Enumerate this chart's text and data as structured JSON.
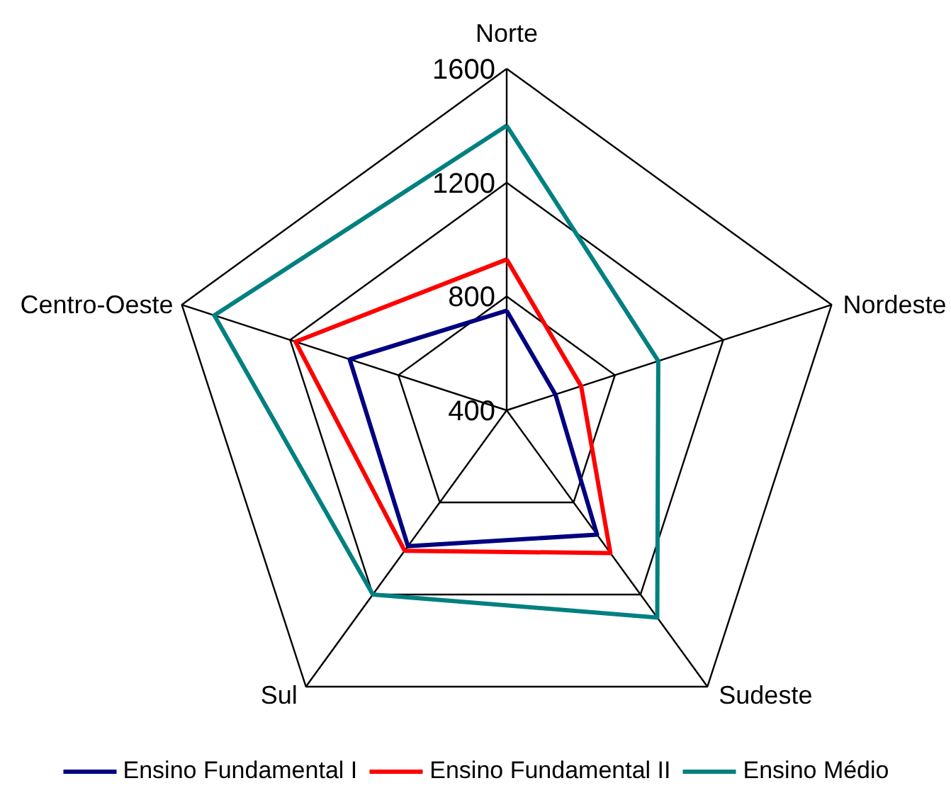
{
  "chart_data": {
    "type": "radar",
    "categories": [
      "Norte",
      "Nordeste",
      "Sudeste",
      "Sul",
      "Centro-Oeste"
    ],
    "ylim": [
      400,
      1600
    ],
    "yticks": [
      400,
      800,
      1200,
      1600
    ],
    "grid": true,
    "legend": "bottom",
    "series": [
      {
        "name": "Ensino Fundamental I",
        "color": "#000080",
        "values": [
          750,
          580,
          940,
          990,
          980
        ]
      },
      {
        "name": "Ensino Fundamental II",
        "color": "#ff0000",
        "values": [
          930,
          675,
          1020,
          1010,
          1180
        ]
      },
      {
        "name": "Ensino Médio",
        "color": "#008080",
        "values": [
          1400,
          960,
          1300,
          1200,
          1480
        ]
      }
    ]
  }
}
